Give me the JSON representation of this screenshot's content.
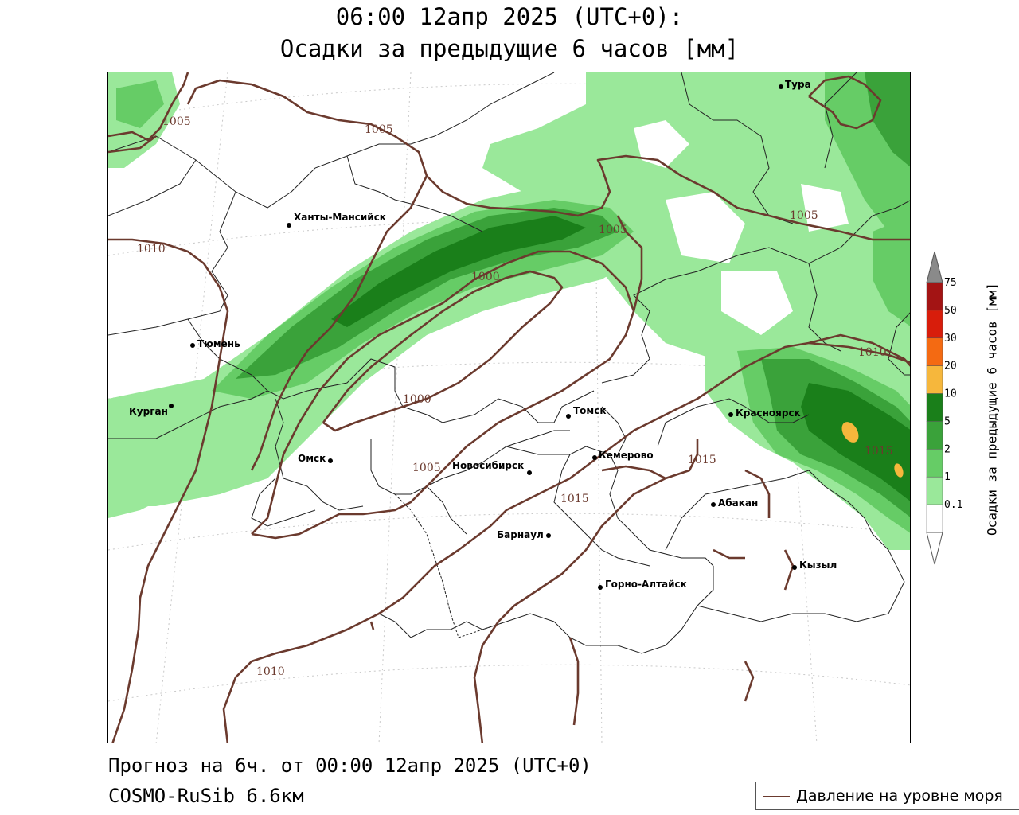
{
  "header": {
    "line1": "06:00 12апр 2025 (UTC+0):",
    "line2": "Осадки за предыдущие 6 часов [мм]"
  },
  "footer": {
    "forecast": "Прогноз на 6ч. от 00:00 12апр 2025 (UTC+0)",
    "model": "COSMO-RuSib 6.6км"
  },
  "legend": {
    "pressure_label": "Давление на уровне моря",
    "pressure_color": "#6b3a2e"
  },
  "colorbar": {
    "title": "Осадки за предыдущие 6 часов [мм]",
    "ticks": [
      "75",
      "50",
      "30",
      "20",
      "10",
      "5",
      "2",
      "1",
      "0.1"
    ],
    "colors": [
      "#a31414",
      "#d81d0b",
      "#f46a12",
      "#f6b73c",
      "#1a7f1a",
      "#3aa23a",
      "#66cc66",
      "#9ae89a",
      "#ffffff"
    ],
    "cap_color": "#8a8a8a"
  },
  "cities": [
    {
      "name": "Тура"
    },
    {
      "name": "Ханты-Мансийск"
    },
    {
      "name": "Тюмень"
    },
    {
      "name": "Курган"
    },
    {
      "name": "Омск"
    },
    {
      "name": "Новосибирск"
    },
    {
      "name": "Томск"
    },
    {
      "name": "Кемерово"
    },
    {
      "name": "Барнаул"
    },
    {
      "name": "Красноярск"
    },
    {
      "name": "Абакан"
    },
    {
      "name": "Кызыл"
    },
    {
      "name": "Горно-Алтайск"
    }
  ],
  "isobar_labels": [
    "1005",
    "1005",
    "1010",
    "1005",
    "1000",
    "1005",
    "1000",
    "1005",
    "1015",
    "1015",
    "1010",
    "1015",
    "1010"
  ],
  "precip_colors": {
    "light": "#9ae89a",
    "medium": "#66cc66",
    "heavy": "#3aa23a",
    "very_heavy": "#1a7f1a",
    "extreme": "#f6b73c"
  }
}
